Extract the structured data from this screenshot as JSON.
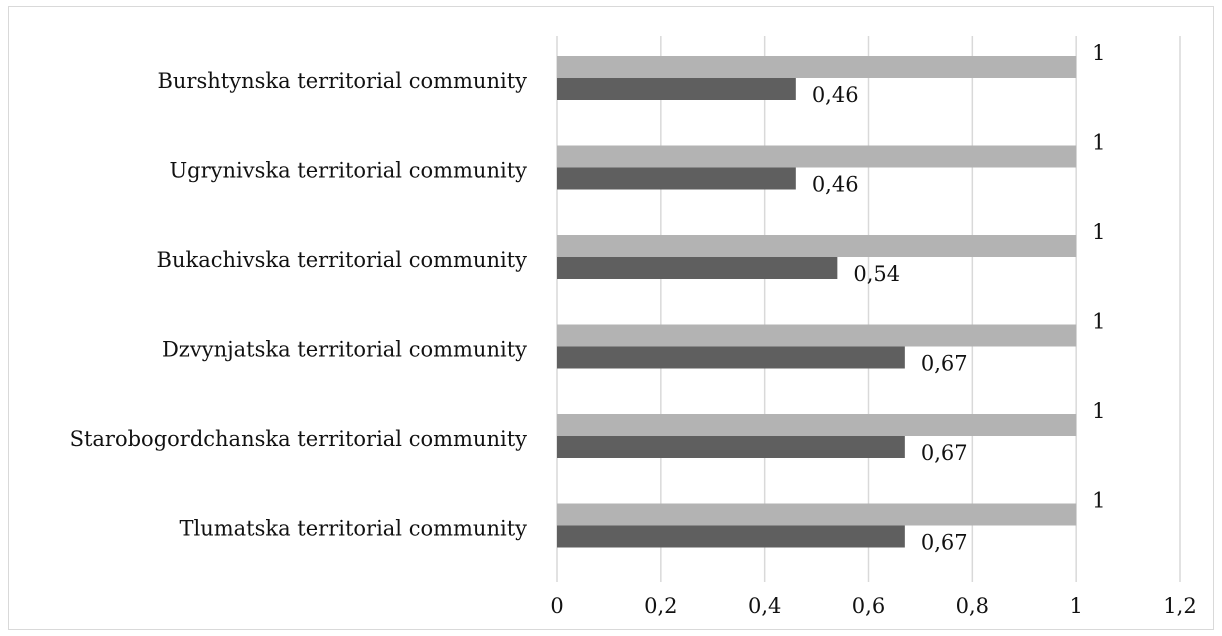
{
  "chart_data": {
    "type": "bar",
    "orientation": "horizontal",
    "categories": [
      "Burshtynska territorial community",
      "Ugrynivska territorial community",
      "Bukachivska territorial community",
      "Dzvynjatska territorial community",
      "Starobogordchanska territorial community",
      "Tlumatska territorial community"
    ],
    "series": [
      {
        "color": "#b3b3b3",
        "values": [
          1,
          1,
          1,
          1,
          1,
          1
        ],
        "labels": [
          "1",
          "1",
          "1",
          "1",
          "1",
          "1"
        ]
      },
      {
        "color": "#5f5f5f",
        "values": [
          0.46,
          0.46,
          0.54,
          0.67,
          0.67,
          0.67
        ],
        "labels": [
          "0,46",
          "0,46",
          "0,54",
          "0,67",
          "0,67",
          "0,67"
        ]
      }
    ],
    "xlim": [
      0,
      1.2
    ],
    "xticks": [
      {
        "value": 0,
        "label": "0"
      },
      {
        "value": 0.2,
        "label": "0,2"
      },
      {
        "value": 0.4,
        "label": "0,4"
      },
      {
        "value": 0.6,
        "label": "0,6"
      },
      {
        "value": 0.8,
        "label": "0,8"
      },
      {
        "value": 1,
        "label": "1"
      },
      {
        "value": 1.2,
        "label": "1,2"
      }
    ],
    "grid": true,
    "legend": "none",
    "title": "",
    "xlabel": "",
    "ylabel": ""
  }
}
